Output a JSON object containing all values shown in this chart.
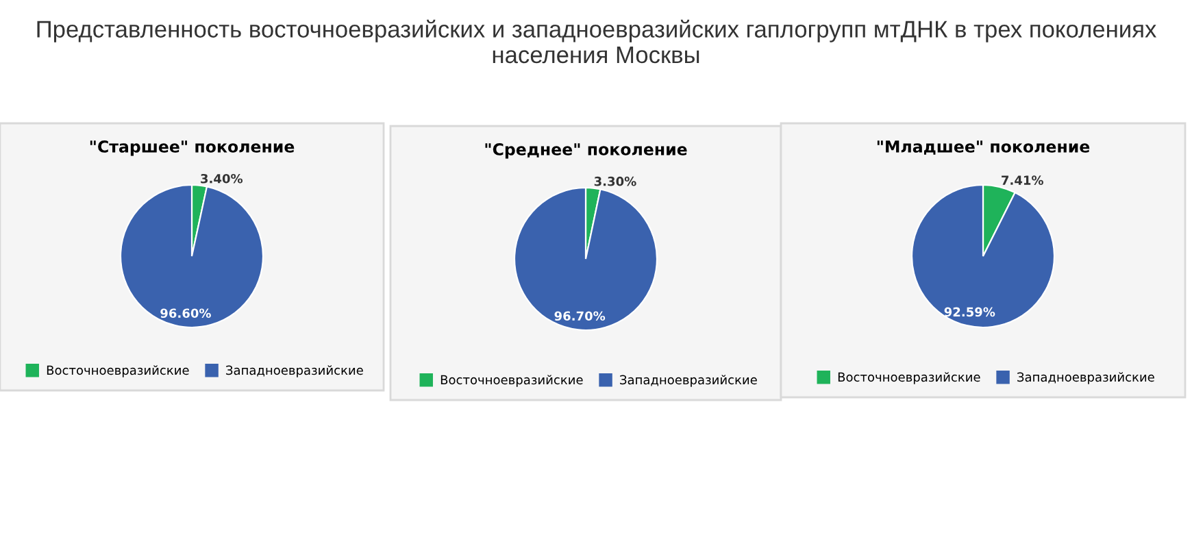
{
  "chart_data": [
    {
      "type": "pie",
      "title": "\"Старшее\" поколение",
      "annotations": [
        "Представленность восточноевразийских и западноевразийских гаплогрупп мтДНК в трех поколениях населения Москвы"
      ],
      "categories": [
        "Восточноевразийские",
        "Западноевразийские"
      ],
      "values": [
        3.4,
        96.6
      ],
      "value_labels": [
        "3.40%",
        "96.60%"
      ],
      "colors": [
        "#1fb35a",
        "#3a62ae"
      ],
      "legend": "bottom"
    },
    {
      "type": "pie",
      "title": "\"Среднее\" поколение",
      "categories": [
        "Восточноевразийские",
        "Западноевразийские"
      ],
      "values": [
        3.3,
        96.7
      ],
      "value_labels": [
        "3.30%",
        "96.70%"
      ],
      "colors": [
        "#1fb35a",
        "#3a62ae"
      ],
      "legend": "bottom"
    },
    {
      "type": "pie",
      "title": "\"Младшее\" поколение",
      "categories": [
        "Восточноевразийские",
        "Западноевразийские"
      ],
      "values": [
        7.41,
        92.59
      ],
      "value_labels": [
        "7.41%",
        "92.59%"
      ],
      "colors": [
        "#1fb35a",
        "#3a62ae"
      ],
      "legend": "bottom"
    }
  ]
}
